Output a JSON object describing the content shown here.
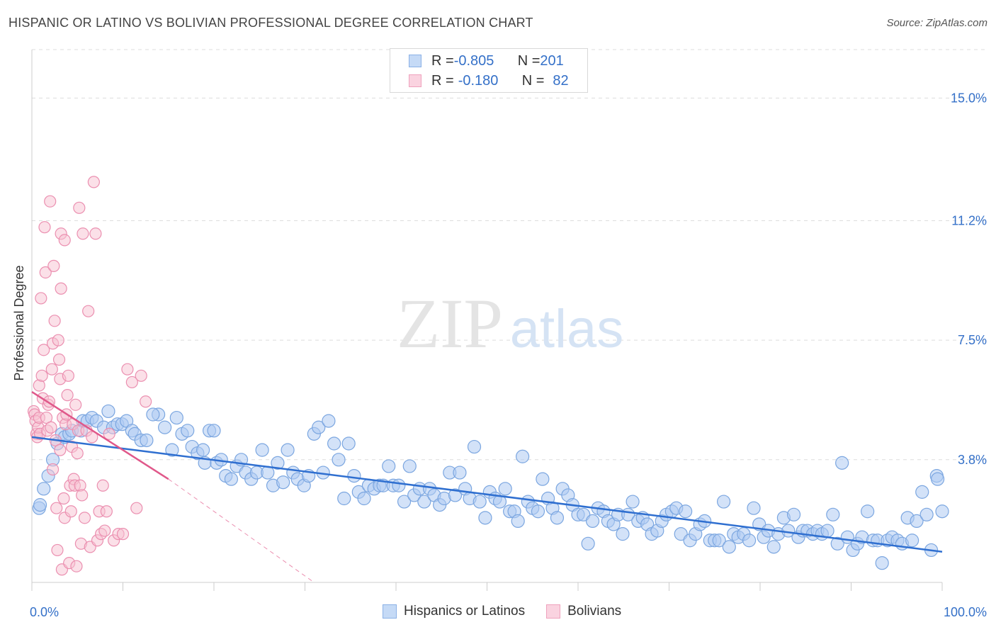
{
  "title": "HISPANIC OR LATINO VS BOLIVIAN PROFESSIONAL DEGREE CORRELATION CHART",
  "source": "Source: ZipAtlas.com",
  "watermark": {
    "zip": "ZIP",
    "atlas": "atlas"
  },
  "legend_top": [
    {
      "r_label": "R = ",
      "r_value": "-0.805",
      "n_label": "N = ",
      "n_value": "201",
      "color": "#9ec3f0"
    },
    {
      "r_label": "R = ",
      "r_value": "-0.180",
      "n_label": "N = ",
      "n_value": "82",
      "color": "#f5b3c8"
    }
  ],
  "colors": {
    "blue_fill": "#aecbf2",
    "blue_stroke": "#7ba6e0",
    "blue_line": "#2f6fd0",
    "pink_fill": "#f7c1d2",
    "pink_stroke": "#eb8fb0",
    "pink_line": "#e0588a",
    "axis_text": "#3470c8",
    "grid": "#dddddd"
  },
  "chart_data": {
    "type": "scatter",
    "title": "HISPANIC OR LATINO VS BOLIVIAN PROFESSIONAL DEGREE CORRELATION CHART",
    "xlabel": "",
    "ylabel": "Professional Degree",
    "xlim": [
      0,
      100
    ],
    "ylim": [
      0,
      16.5
    ],
    "x_tick_labels": [
      "0.0%",
      "100.0%"
    ],
    "y_ticks": [
      3.8,
      7.5,
      11.2,
      15.0
    ],
    "y_tick_labels": [
      "3.8%",
      "7.5%",
      "11.2%",
      "15.0%"
    ],
    "legend": [
      "Hispanics or Latinos",
      "Bolivians"
    ],
    "series": [
      {
        "name": "Hispanics or Latinos",
        "R": -0.805,
        "N": 201,
        "trend": {
          "x": [
            0,
            100
          ],
          "y": [
            4.5,
            0.95
          ]
        },
        "points": [
          [
            0.8,
            2.3
          ],
          [
            0.9,
            2.4
          ],
          [
            1.3,
            2.9
          ],
          [
            1.8,
            3.3
          ],
          [
            2.3,
            3.8
          ],
          [
            2.8,
            4.3
          ],
          [
            3.3,
            4.6
          ],
          [
            3.6,
            4.5
          ],
          [
            4.1,
            4.6
          ],
          [
            4.4,
            4.7
          ],
          [
            5.4,
            4.7
          ],
          [
            5.6,
            5.0
          ],
          [
            6.1,
            5.0
          ],
          [
            6.6,
            5.1
          ],
          [
            7.1,
            5.0
          ],
          [
            7.9,
            4.8
          ],
          [
            8.4,
            5.3
          ],
          [
            8.9,
            4.8
          ],
          [
            9.4,
            4.9
          ],
          [
            9.9,
            4.9
          ],
          [
            10.4,
            5.0
          ],
          [
            11.0,
            4.7
          ],
          [
            11.3,
            4.6
          ],
          [
            12.0,
            4.4
          ],
          [
            12.6,
            4.4
          ],
          [
            13.9,
            5.2
          ],
          [
            13.3,
            5.2
          ],
          [
            14.6,
            4.8
          ],
          [
            15.4,
            4.1
          ],
          [
            15.9,
            5.1
          ],
          [
            16.5,
            4.6
          ],
          [
            17.1,
            4.7
          ],
          [
            17.6,
            4.2
          ],
          [
            18.2,
            4.0
          ],
          [
            18.8,
            4.1
          ],
          [
            19.0,
            3.7
          ],
          [
            19.5,
            4.7
          ],
          [
            20.0,
            4.7
          ],
          [
            20.3,
            3.7
          ],
          [
            20.8,
            3.8
          ],
          [
            21.3,
            3.3
          ],
          [
            21.9,
            3.2
          ],
          [
            22.5,
            3.6
          ],
          [
            23.0,
            3.8
          ],
          [
            23.5,
            3.4
          ],
          [
            24.1,
            3.2
          ],
          [
            24.7,
            3.4
          ],
          [
            25.3,
            4.1
          ],
          [
            25.9,
            3.4
          ],
          [
            26.5,
            3.0
          ],
          [
            27.0,
            3.7
          ],
          [
            27.6,
            3.1
          ],
          [
            28.1,
            4.1
          ],
          [
            28.7,
            3.4
          ],
          [
            29.2,
            3.2
          ],
          [
            29.9,
            3.0
          ],
          [
            30.4,
            3.3
          ],
          [
            31.0,
            4.6
          ],
          [
            31.5,
            4.8
          ],
          [
            32.0,
            3.4
          ],
          [
            32.6,
            5.0
          ],
          [
            33.2,
            4.3
          ],
          [
            33.7,
            3.8
          ],
          [
            34.3,
            2.6
          ],
          [
            34.8,
            4.3
          ],
          [
            35.4,
            3.3
          ],
          [
            35.9,
            2.8
          ],
          [
            36.5,
            2.6
          ],
          [
            37.0,
            3.0
          ],
          [
            37.6,
            2.9
          ],
          [
            38.2,
            3.0
          ],
          [
            38.6,
            3.0
          ],
          [
            39.2,
            3.6
          ],
          [
            39.7,
            3.0
          ],
          [
            40.3,
            3.0
          ],
          [
            40.9,
            2.5
          ],
          [
            41.5,
            3.6
          ],
          [
            42.0,
            2.7
          ],
          [
            42.6,
            2.9
          ],
          [
            43.1,
            2.5
          ],
          [
            43.7,
            2.9
          ],
          [
            44.2,
            2.7
          ],
          [
            44.8,
            2.4
          ],
          [
            45.3,
            2.6
          ],
          [
            45.9,
            3.4
          ],
          [
            46.5,
            2.7
          ],
          [
            47.0,
            3.4
          ],
          [
            47.6,
            2.9
          ],
          [
            48.1,
            2.6
          ],
          [
            48.6,
            4.2
          ],
          [
            49.2,
            2.5
          ],
          [
            49.8,
            2.0
          ],
          [
            50.3,
            2.8
          ],
          [
            50.9,
            2.6
          ],
          [
            51.4,
            2.5
          ],
          [
            52.0,
            2.9
          ],
          [
            52.5,
            2.2
          ],
          [
            53.0,
            2.2
          ],
          [
            53.4,
            1.9
          ],
          [
            53.9,
            3.9
          ],
          [
            54.5,
            2.5
          ],
          [
            55.0,
            2.3
          ],
          [
            55.6,
            2.2
          ],
          [
            56.1,
            3.2
          ],
          [
            56.7,
            2.6
          ],
          [
            57.2,
            2.3
          ],
          [
            57.7,
            2.0
          ],
          [
            58.3,
            2.9
          ],
          [
            58.9,
            2.7
          ],
          [
            59.4,
            2.4
          ],
          [
            60.0,
            2.1
          ],
          [
            60.6,
            2.1
          ],
          [
            61.1,
            1.2
          ],
          [
            61.6,
            1.9
          ],
          [
            62.2,
            2.3
          ],
          [
            62.8,
            2.2
          ],
          [
            63.3,
            1.9
          ],
          [
            63.9,
            1.8
          ],
          [
            64.4,
            2.1
          ],
          [
            64.9,
            1.5
          ],
          [
            65.5,
            2.1
          ],
          [
            66.0,
            2.5
          ],
          [
            66.6,
            1.9
          ],
          [
            67.1,
            2.0
          ],
          [
            67.6,
            1.8
          ],
          [
            68.1,
            1.5
          ],
          [
            68.7,
            1.6
          ],
          [
            69.2,
            1.9
          ],
          [
            69.7,
            2.1
          ],
          [
            70.3,
            2.2
          ],
          [
            70.8,
            2.3
          ],
          [
            71.3,
            1.5
          ],
          [
            71.8,
            2.2
          ],
          [
            72.3,
            1.3
          ],
          [
            72.9,
            1.5
          ],
          [
            73.4,
            1.8
          ],
          [
            73.9,
            1.9
          ],
          [
            74.5,
            1.3
          ],
          [
            75.0,
            1.3
          ],
          [
            75.5,
            1.3
          ],
          [
            76.0,
            2.5
          ],
          [
            76.6,
            1.1
          ],
          [
            77.1,
            1.5
          ],
          [
            77.6,
            1.4
          ],
          [
            78.2,
            1.5
          ],
          [
            78.8,
            1.3
          ],
          [
            79.3,
            2.3
          ],
          [
            79.9,
            1.8
          ],
          [
            80.4,
            1.4
          ],
          [
            80.9,
            1.6
          ],
          [
            81.5,
            1.1
          ],
          [
            82.0,
            1.5
          ],
          [
            82.6,
            2.0
          ],
          [
            83.1,
            1.6
          ],
          [
            83.7,
            2.1
          ],
          [
            84.2,
            1.4
          ],
          [
            84.7,
            1.6
          ],
          [
            85.2,
            1.6
          ],
          [
            85.8,
            1.5
          ],
          [
            86.3,
            1.6
          ],
          [
            86.8,
            1.5
          ],
          [
            87.4,
            1.6
          ],
          [
            88.0,
            2.1
          ],
          [
            88.5,
            1.2
          ],
          [
            89.0,
            3.7
          ],
          [
            89.6,
            1.4
          ],
          [
            90.2,
            1.0
          ],
          [
            90.7,
            1.2
          ],
          [
            91.2,
            1.4
          ],
          [
            91.8,
            2.2
          ],
          [
            92.4,
            1.3
          ],
          [
            92.9,
            1.3
          ],
          [
            93.4,
            0.6
          ],
          [
            94.0,
            1.3
          ],
          [
            94.5,
            1.4
          ],
          [
            95.1,
            1.3
          ],
          [
            95.6,
            1.2
          ],
          [
            96.2,
            2.0
          ],
          [
            96.7,
            1.3
          ],
          [
            97.2,
            1.9
          ],
          [
            97.8,
            2.8
          ],
          [
            98.3,
            2.1
          ],
          [
            98.8,
            1.0
          ],
          [
            99.4,
            3.3
          ],
          [
            99.5,
            3.2
          ],
          [
            100.0,
            2.2
          ]
        ]
      },
      {
        "name": "Bolivians",
        "R": -0.18,
        "N": 82,
        "trend": {
          "x": [
            0,
            15
          ],
          "y": [
            5.9,
            3.2
          ]
        },
        "trend_extension": {
          "x": [
            15,
            31
          ],
          "y": [
            3.2,
            0
          ]
        },
        "points": [
          [
            0.2,
            5.3
          ],
          [
            0.3,
            5.2
          ],
          [
            0.4,
            5.0
          ],
          [
            0.5,
            4.6
          ],
          [
            0.6,
            4.5
          ],
          [
            0.7,
            4.8
          ],
          [
            0.8,
            6.1
          ],
          [
            0.8,
            5.1
          ],
          [
            0.9,
            4.6
          ],
          [
            1.0,
            8.8
          ],
          [
            1.1,
            6.4
          ],
          [
            1.2,
            5.7
          ],
          [
            1.3,
            7.2
          ],
          [
            1.4,
            11.0
          ],
          [
            1.5,
            9.6
          ],
          [
            1.6,
            5.1
          ],
          [
            1.7,
            4.7
          ],
          [
            1.8,
            5.5
          ],
          [
            1.9,
            5.6
          ],
          [
            2.0,
            11.8
          ],
          [
            2.1,
            4.8
          ],
          [
            2.2,
            6.6
          ],
          [
            2.3,
            7.4
          ],
          [
            2.3,
            3.5
          ],
          [
            2.4,
            9.8
          ],
          [
            2.5,
            8.1
          ],
          [
            2.6,
            4.4
          ],
          [
            2.7,
            2.3
          ],
          [
            2.8,
            1.0
          ],
          [
            2.9,
            7.5
          ],
          [
            3.0,
            6.9
          ],
          [
            3.1,
            4.1
          ],
          [
            3.1,
            6.3
          ],
          [
            3.2,
            9.1
          ],
          [
            3.2,
            10.8
          ],
          [
            3.3,
            0.4
          ],
          [
            3.4,
            5.1
          ],
          [
            3.5,
            2.6
          ],
          [
            3.6,
            10.6
          ],
          [
            3.6,
            2.0
          ],
          [
            3.7,
            4.9
          ],
          [
            3.8,
            5.2
          ],
          [
            3.9,
            5.8
          ],
          [
            4.0,
            6.4
          ],
          [
            4.1,
            0.6
          ],
          [
            4.2,
            3.0
          ],
          [
            4.3,
            2.2
          ],
          [
            4.4,
            4.2
          ],
          [
            4.5,
            4.9
          ],
          [
            4.6,
            3.2
          ],
          [
            4.7,
            3.0
          ],
          [
            4.8,
            5.5
          ],
          [
            4.9,
            0.5
          ],
          [
            5.0,
            4.0
          ],
          [
            5.1,
            4.7
          ],
          [
            5.2,
            11.6
          ],
          [
            5.3,
            3.0
          ],
          [
            5.4,
            1.2
          ],
          [
            5.5,
            2.7
          ],
          [
            5.6,
            10.8
          ],
          [
            5.8,
            2.0
          ],
          [
            6.0,
            4.7
          ],
          [
            6.2,
            8.4
          ],
          [
            6.4,
            1.1
          ],
          [
            6.6,
            4.5
          ],
          [
            6.8,
            12.4
          ],
          [
            7.0,
            10.8
          ],
          [
            7.2,
            1.3
          ],
          [
            7.4,
            2.2
          ],
          [
            7.6,
            1.5
          ],
          [
            7.8,
            3.0
          ],
          [
            8.0,
            1.6
          ],
          [
            8.2,
            2.2
          ],
          [
            8.5,
            4.6
          ],
          [
            9.0,
            1.3
          ],
          [
            9.5,
            1.5
          ],
          [
            10.0,
            1.5
          ],
          [
            10.5,
            6.6
          ],
          [
            11.0,
            6.2
          ],
          [
            11.5,
            2.3
          ],
          [
            12.0,
            6.4
          ],
          [
            12.5,
            5.6
          ]
        ]
      }
    ]
  }
}
